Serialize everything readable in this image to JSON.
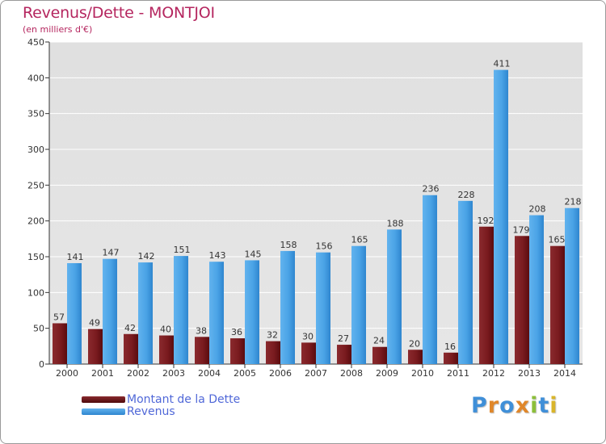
{
  "header": {
    "title": "Revenus/Dette - MONTJOI",
    "subtitle": "(en milliers d'€)"
  },
  "legend": {
    "items": [
      {
        "label": "Montant de la Dette",
        "color": "#6b0f12"
      },
      {
        "label": "Revenus",
        "color": "#3f9ae2"
      }
    ]
  },
  "logo": {
    "text": "Proxiti",
    "colors": [
      "#3f8fd8",
      "#e0872a",
      "#3f8fd8",
      "#e0872a",
      "#8cbf3a",
      "#3f8fd8",
      "#d9b52a"
    ]
  },
  "colors": {
    "title": "#b5265f",
    "dette": "#6b0f12",
    "revenus": "#3f9ae2",
    "axis": "#333333",
    "grid": "#ffffff"
  },
  "chart_data": {
    "type": "bar",
    "title": "Revenus/Dette - MONTJOI",
    "subtitle": "(en milliers d'€)",
    "xlabel": "",
    "ylabel": "",
    "categories": [
      "2000",
      "2001",
      "2002",
      "2003",
      "2004",
      "2005",
      "2006",
      "2007",
      "2008",
      "2009",
      "2010",
      "2011",
      "2012",
      "2013",
      "2014"
    ],
    "series": [
      {
        "name": "Montant de la Dette",
        "values": [
          57,
          49,
          42,
          40,
          38,
          36,
          32,
          30,
          27,
          24,
          20,
          16,
          192,
          179,
          165
        ]
      },
      {
        "name": "Revenus",
        "values": [
          141,
          147,
          142,
          151,
          143,
          145,
          158,
          156,
          165,
          188,
          236,
          228,
          411,
          208,
          218
        ]
      }
    ],
    "ylim": [
      0,
      450
    ],
    "yticks": [
      0,
      50,
      100,
      150,
      200,
      250,
      300,
      350,
      400,
      450
    ],
    "grid": true,
    "legend": "bottom-left"
  }
}
